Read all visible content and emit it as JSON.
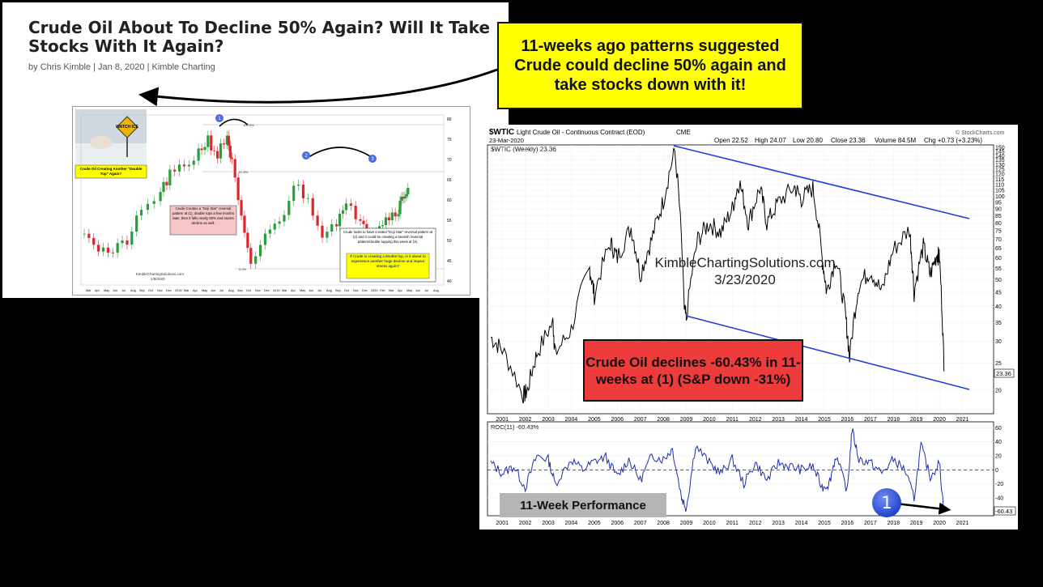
{
  "article": {
    "title": "Crude Oil About To Decline 50% Again? Will It Take Stocks With It Again?",
    "byline_prefix": "by",
    "author": "Chris Kimble",
    "date": "Jan 8, 2020",
    "site": "Kimble Charting"
  },
  "callouts": {
    "top_yellow": "11-weeks ago patterns suggested Crude could decline 50% again and take stocks down with it!",
    "red": "Crude Oil declines -60.43% in 11-weeks at (1) (S&P down -31%)",
    "performance": "11-Week Performance",
    "marker": "1"
  },
  "thumbnail": {
    "sign_text": "WATCH ICE",
    "yellow_label": "Crude Oil Creating Another \"Double Top\" Again?",
    "pink_note": "Crude Creates a \"Doji Star\" reversal pattern at (1), double tops a few months later, then it falls nearly 50% and stocks decline as well.",
    "white_note": "Crude looks to have created \"Doji Star\" reversal pattern at (2) and it could be creating a bearish reversal pattern/double topping this week at (3).",
    "yellow_note": "If Crude is creating a double top, is it about to experience another huge decline and impact stocks again?",
    "watermark": "KimbleChartingSolutions.com",
    "watermark_date": "1/8/2020",
    "fib_1": "100.0%",
    "fib_2": "61.8%",
    "fib_3": "0.0%",
    "markers": [
      "1",
      "2",
      "3"
    ],
    "y_ticks": [
      "80",
      "75",
      "70",
      "65",
      "60",
      "55",
      "50",
      "45",
      "40"
    ],
    "x_ticks": [
      "Mar",
      "Apr",
      "May",
      "Jun",
      "Jul",
      "Aug",
      "Sep",
      "Oct",
      "Nov",
      "Dec",
      "2018",
      "Mar",
      "Apr",
      "May",
      "Jun",
      "Jul",
      "Aug",
      "Sep",
      "Oct",
      "Nov",
      "Dec",
      "2019",
      "Mar",
      "Apr",
      "May",
      "Jun",
      "Jul",
      "Aug",
      "Sep",
      "Oct",
      "Nov",
      "Dec",
      "2020",
      "Feb",
      "Mar",
      "Apr",
      "May",
      "Jun",
      "Jul",
      "Aug"
    ]
  },
  "chart_header": {
    "symbol": "$WTIC",
    "name": "Light Crude Oil - Continuous Contract (EOD)",
    "exchange": "CME",
    "credit": "© StockCharts.com",
    "date": "23-Mar-2020",
    "open": "Open 22.52",
    "high": "High 24.07",
    "low": "Low 20.80",
    "close": "Close 23.36",
    "volume": "Volume 84.5M",
    "chg": "Chg +0.73 (+3.23%)",
    "legend_main": "$WTIC (Weekly) 23.36",
    "legend_roc": "ROC(11) -60.43%",
    "watermark": "KimbleChartingSolutions.com",
    "watermark_date": "3/23/2020",
    "last_price_tag": "23.36",
    "last_roc_tag": "-60.43"
  },
  "chart_data": [
    {
      "type": "line",
      "title": "$WTIC Light Crude Oil - Continuous Contract (EOD) CME",
      "series": [
        {
          "name": "$WTIC (Weekly)",
          "x": [
            2000.5,
            2001.0,
            2001.9,
            2002.1,
            2002.5,
            2003.2,
            2003.3,
            2004.0,
            2004.8,
            2005.0,
            2005.7,
            2006.0,
            2006.6,
            2007.0,
            2007.5,
            2008.0,
            2008.5,
            2008.9,
            2009.0,
            2009.5,
            2010.0,
            2010.5,
            2011.0,
            2011.3,
            2011.7,
            2012.2,
            2012.5,
            2013.0,
            2013.7,
            2014.0,
            2014.5,
            2014.9,
            2015.1,
            2015.5,
            2015.9,
            2016.1,
            2016.5,
            2017.0,
            2017.5,
            2018.0,
            2018.7,
            2018.9,
            2019.3,
            2019.6,
            2019.9,
            2020.0,
            2020.2
          ],
          "values": [
            31,
            28,
            19,
            20,
            27,
            35,
            27,
            33,
            55,
            44,
            68,
            60,
            77,
            52,
            70,
            96,
            145,
            40,
            36,
            70,
            80,
            74,
            90,
            113,
            80,
            107,
            80,
            95,
            108,
            98,
            107,
            60,
            45,
            60,
            38,
            26,
            48,
            54,
            45,
            64,
            76,
            45,
            66,
            52,
            62,
            60,
            23.36
          ]
        }
      ],
      "y_ticks": [
        "150",
        "145",
        "140",
        "135",
        "130",
        "125",
        "120",
        "115",
        "110",
        "105",
        "100",
        "95",
        "90",
        "85",
        "80",
        "75",
        "70",
        "65",
        "60",
        "55",
        "50",
        "45",
        "40",
        "35",
        "30",
        "25",
        "20"
      ],
      "x_ticks": [
        "2001",
        "2002",
        "2003",
        "2004",
        "2005",
        "2006",
        "2007",
        "2008",
        "2009",
        "2010",
        "2011",
        "2012",
        "2013",
        "2014",
        "2015",
        "2016",
        "2017",
        "2018",
        "2019",
        "2020",
        "2021"
      ],
      "log_scale": true
    },
    {
      "type": "line",
      "title": "ROC(11)",
      "series": [
        {
          "name": "ROC(11)",
          "x": [
            2000.5,
            2001.0,
            2001.5,
            2002.0,
            2002.5,
            2003.0,
            2003.3,
            2004.0,
            2004.5,
            2005.0,
            2005.5,
            2006.0,
            2006.5,
            2007.0,
            2007.5,
            2008.0,
            2008.4,
            2008.8,
            2009.0,
            2009.4,
            2010.0,
            2010.5,
            2011.0,
            2011.5,
            2012.0,
            2012.5,
            2013.0,
            2013.5,
            2014.0,
            2014.5,
            2014.9,
            2015.2,
            2015.5,
            2016.0,
            2016.2,
            2016.5,
            2017.0,
            2017.5,
            2018.0,
            2018.5,
            2018.9,
            2019.2,
            2019.6,
            2020.0,
            2020.2
          ],
          "values": [
            10,
            -5,
            5,
            -25,
            20,
            15,
            -20,
            15,
            0,
            12,
            18,
            -10,
            15,
            -15,
            20,
            15,
            30,
            -40,
            -55,
            35,
            10,
            -5,
            15,
            -20,
            10,
            -15,
            10,
            5,
            0,
            5,
            -25,
            -20,
            20,
            -30,
            58,
            15,
            10,
            -5,
            15,
            0,
            -40,
            35,
            -10,
            10,
            -60.43
          ]
        }
      ],
      "y_ticks": [
        "60",
        "40",
        "20",
        "0",
        "-20",
        "-40"
      ],
      "x_ticks": [
        "2001",
        "2002",
        "2003",
        "2004",
        "2005",
        "2006",
        "2007",
        "2008",
        "2009",
        "2010",
        "2011",
        "2012",
        "2013",
        "2014",
        "2015",
        "2016",
        "2017",
        "2018",
        "2019",
        "2020",
        "2021"
      ]
    },
    {
      "type": "bar",
      "title": "Crude Oil Creating Another \"Double Top\" Again?",
      "series": [
        {
          "name": "Crude (candles)",
          "x": [
            0,
            3,
            6,
            9,
            12,
            16,
            18,
            21,
            24,
            26,
            28,
            30,
            31,
            33,
            35,
            38,
            41,
            44,
            47,
            50,
            53,
            55,
            58,
            60,
            62,
            64,
            66,
            67,
            68
          ],
          "values": [
            53,
            48,
            47,
            50,
            57,
            62,
            66,
            68,
            72,
            75,
            71,
            76,
            69,
            55,
            43,
            52,
            54,
            64,
            60,
            52,
            55,
            58,
            56,
            52,
            54,
            56,
            58,
            61,
            63
          ]
        }
      ],
      "ylim": [
        40,
        80
      ]
    }
  ]
}
